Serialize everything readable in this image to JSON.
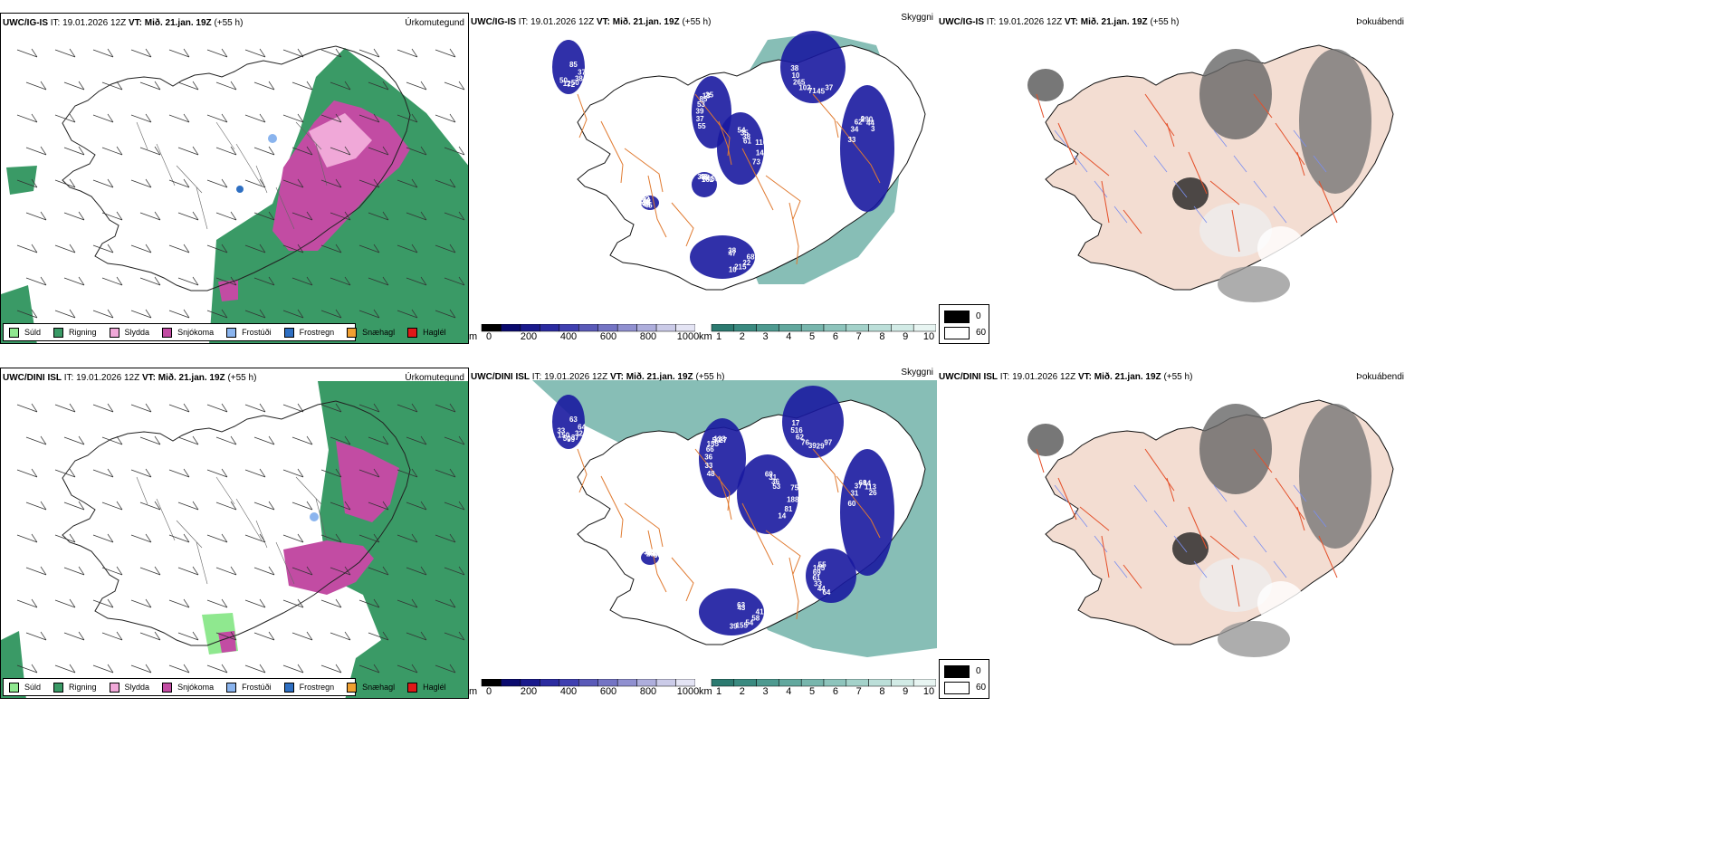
{
  "top": {
    "precip": {
      "model": "UWC/IG-IS",
      "it_label": "IT:",
      "it": "19.01.2026 12Z",
      "vt_label": "VT:",
      "vt": "Mið. 21.jan. 19Z",
      "lead": "(+55 h)",
      "title": "Úrkomutegund"
    },
    "cloud": {
      "model": "UWC/IG-IS",
      "it_label": "IT:",
      "it": "19.01.2026 12Z",
      "vt_label": "VT:",
      "vt": "Mið. 21.jan. 19Z",
      "lead": "(+55 h)",
      "title": "Skyggni"
    },
    "fog": {
      "model": "UWC/IG-IS",
      "it_label": "IT:",
      "it": "19.01.2026 12Z",
      "vt_label": "VT:",
      "vt": "Mið. 21.jan. 19Z",
      "lead": "(+55 h)",
      "title": "Þokuábendi"
    },
    "labels": [
      "85",
      "55",
      "54",
      "37",
      "33",
      "38",
      "45",
      "39",
      "37",
      "37",
      "35",
      "45",
      "34",
      "47",
      "45",
      "43",
      "38",
      "39",
      "38",
      "71",
      "62",
      "68",
      "44",
      "59",
      "50",
      "53",
      "61",
      "102",
      "9",
      "22",
      "148",
      "86",
      "72",
      "85",
      "110",
      "265",
      "290",
      "215",
      "161",
      "162",
      "12",
      "13",
      "14",
      "10",
      "44",
      "10",
      "42",
      "59",
      "50",
      "25",
      "73",
      "38",
      "3"
    ]
  },
  "bottom": {
    "precip": {
      "model": "UWC/DINI ISL",
      "it_label": "IT:",
      "it": "19.01.2026 12Z",
      "vt_label": "VT:",
      "vt": "Mið. 21.jan. 19Z",
      "lead": "(+55 h)",
      "title": "Úrkomutegund"
    },
    "cloud": {
      "model": "UWC/DINI ISL",
      "it_label": "IT:",
      "it": "19.01.2026 12Z",
      "vt_label": "VT:",
      "vt": "Mið. 21.jan. 19Z",
      "lead": "(+55 h)",
      "title": "Skyggni"
    },
    "fog": {
      "model": "UWC/DINI ISL",
      "it_label": "IT:",
      "it": "19.01.2026 12Z",
      "vt_label": "VT:",
      "vt": "Mið. 21.jan. 19Z",
      "lead": "(+55 h)",
      "title": "Þokuábendi"
    },
    "labels": [
      "63",
      "48",
      "69",
      "97",
      "60",
      "63",
      "64",
      "37",
      "64",
      "33",
      "31",
      "29",
      "31",
      "43",
      "44",
      "42",
      "32",
      "36",
      "36",
      "39",
      "37",
      "41",
      "33",
      "30",
      "37",
      "66",
      "53",
      "76",
      "69",
      "58",
      "61",
      "98",
      "99",
      "155",
      "75",
      "62",
      "44",
      "54",
      "69",
      "280",
      "50",
      "50",
      "188",
      "516",
      "113",
      "155",
      "105",
      "142",
      "150",
      "133",
      "81",
      "17",
      "26",
      "39",
      "55",
      "60",
      "33",
      "27",
      "14"
    ]
  },
  "legend": {
    "items": [
      {
        "label": "Súld",
        "color": "#8fe88f"
      },
      {
        "label": "Rigning",
        "color": "#3a9a66"
      },
      {
        "label": "Slydda",
        "color": "#f0a8d8"
      },
      {
        "label": "Snjókoma",
        "color": "#c24ca3"
      },
      {
        "label": "Frostúði",
        "color": "#8ab4ee"
      },
      {
        "label": "Frostregn",
        "color": "#2e6fc2"
      },
      {
        "label": "Snæhagl",
        "color": "#f0a030"
      },
      {
        "label": "Haglél",
        "color": "#e01818"
      }
    ]
  },
  "cbar_height": {
    "unit": "m",
    "ticks": [
      "0",
      "200",
      "400",
      "600",
      "800",
      "1000"
    ],
    "colors": [
      "#000000",
      "#0a0a6e",
      "#1a1a8c",
      "#2b2ba0",
      "#4040b0",
      "#5a5ab8",
      "#7474c4",
      "#9090d0",
      "#aeaedc",
      "#cbcbe8",
      "#e4e4f4"
    ]
  },
  "cbar_vis": {
    "unit": "km",
    "ticks": [
      "1",
      "2",
      "3",
      "4",
      "5",
      "6",
      "7",
      "8",
      "9",
      "10"
    ],
    "colors": [
      "#2c7a70",
      "#3a8a80",
      "#4e9a90",
      "#62a89e",
      "#78b6ad",
      "#8ec4bc",
      "#a4d2ca",
      "#bcdfd9",
      "#d2ebe6",
      "#e8f5f2"
    ]
  },
  "fog_legend": {
    "values": [
      "0",
      "60"
    ],
    "colors": [
      "#000000",
      "#ffffff"
    ]
  },
  "colors": {
    "land": "#f3ddd2",
    "roads": "#e07a30",
    "rivers": "#7a8ef0",
    "ice": "#ffffff"
  }
}
